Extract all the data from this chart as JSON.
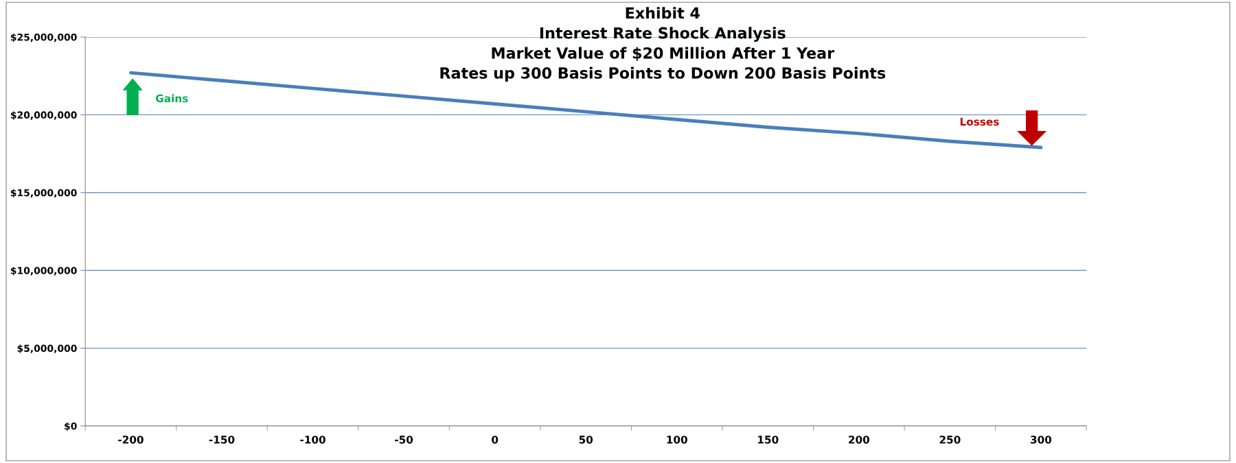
{
  "chart_data": {
    "type": "line",
    "title": "Exhibit 4\nInterest Rate Shock Analysis\nMarket Value of $20 Million After 1 Year\nRates up 300 Basis Points to Down 200 Basis Points",
    "categories": [
      "-200",
      "-150",
      "-100",
      "-50",
      "0",
      "50",
      "100",
      "150",
      "200",
      "250",
      "300"
    ],
    "series": [
      {
        "color": "#4a7ebb",
        "values": [
          22700000,
          22200000,
          21700000,
          21200000,
          20700000,
          20200000,
          19700000,
          19200000,
          18800000,
          18300000,
          17900000
        ]
      }
    ],
    "ylim": [
      0,
      25000000
    ],
    "yticks": [
      {
        "value": 0,
        "label": "$0"
      },
      {
        "value": 5000000,
        "label": "$5,000,000"
      },
      {
        "value": 10000000,
        "label": "$10,000,000"
      },
      {
        "value": 15000000,
        "label": "$15,000,000"
      },
      {
        "value": 20000000,
        "label": "$20,000,000"
      },
      {
        "value": 25000000,
        "label": "$25,000,000"
      }
    ],
    "grid": "y",
    "legend": false,
    "marker": "none",
    "line_style": "solid",
    "annotations": [
      "Gains",
      "Losses"
    ]
  }
}
